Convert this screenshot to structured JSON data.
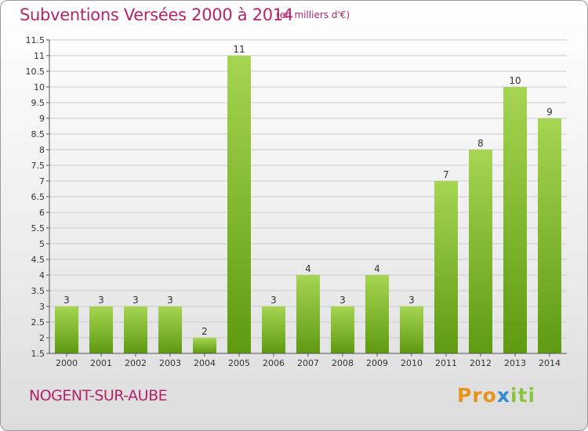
{
  "header": {
    "title": "Subventions Versées 2000 à 2014",
    "unit": "(en milliers d'€)"
  },
  "footer": {
    "commune": "NOGENT-SUR-AUBE",
    "logo_text": "Proxiti",
    "logo_parts": [
      "Pro",
      "x",
      "iti"
    ]
  },
  "colors": {
    "accent": "#b5246b",
    "bar_light": "#a6d552",
    "bar_dark": "#5e9a12",
    "grid": "#cccccc",
    "logo_orange": "#e8941a",
    "logo_blue": "#2f8fd0",
    "logo_green": "#8bc540"
  },
  "chart_data": {
    "type": "bar",
    "categories": [
      "2000",
      "2001",
      "2002",
      "2003",
      "2004",
      "2005",
      "2006",
      "2007",
      "2008",
      "2009",
      "2010",
      "2011",
      "2012",
      "2013",
      "2014"
    ],
    "values": [
      3,
      3,
      3,
      3,
      2,
      11,
      3,
      4,
      3,
      4,
      3,
      7,
      8,
      10,
      9
    ],
    "value_labels": [
      "3",
      "3",
      "3",
      "3",
      "2",
      "11",
      "3",
      "4",
      "3",
      "4",
      "3",
      "7",
      "8",
      "10",
      "9"
    ],
    "ylim": [
      1.5,
      11.5
    ],
    "yticks": [
      "1.5",
      "2",
      "2.5",
      "3",
      "3.5",
      "4",
      "4.5",
      "5",
      "5.5",
      "6",
      "6.5",
      "7",
      "7.5",
      "8",
      "8.5",
      "9",
      "9.5",
      "10",
      "10.5",
      "11",
      "11.5"
    ],
    "grid": true,
    "legend": "none"
  }
}
